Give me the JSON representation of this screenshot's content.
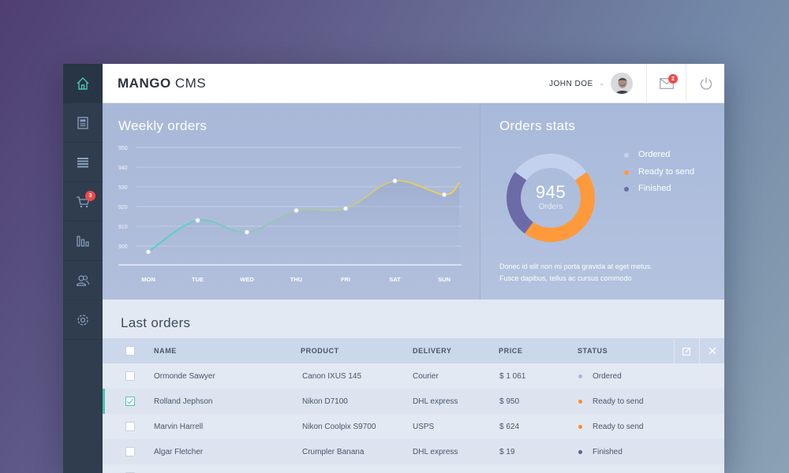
{
  "app": {
    "brand_bold": "MANGO",
    "brand_light": " CMS"
  },
  "header": {
    "user_name": "JOHN DOE",
    "mail_badge": "2",
    "icons": [
      "chevron-down-icon",
      "avatar",
      "mail-icon",
      "power-icon"
    ]
  },
  "sidebar": {
    "items": [
      {
        "name": "home",
        "icon": "home-icon",
        "active": true
      },
      {
        "name": "news",
        "icon": "newspaper-icon"
      },
      {
        "name": "list",
        "icon": "list-icon"
      },
      {
        "name": "cart",
        "icon": "cart-icon",
        "badge": "3"
      },
      {
        "name": "stats",
        "icon": "bar-chart-icon"
      },
      {
        "name": "users",
        "icon": "users-icon"
      },
      {
        "name": "settings",
        "icon": "gear-icon"
      }
    ]
  },
  "weekly": {
    "title": "Weekly orders"
  },
  "chart_data": {
    "type": "line",
    "title": "Weekly orders",
    "categories": [
      "MON",
      "TUE",
      "WED",
      "THU",
      "FRI",
      "SAT",
      "SUN"
    ],
    "values": [
      897,
      913,
      907,
      918,
      919,
      933,
      926
    ],
    "ytick_labels": [
      "950",
      "940",
      "930",
      "920",
      "910",
      "900"
    ],
    "ylim": [
      890,
      950
    ],
    "grid": true,
    "xlabel": "",
    "ylabel": ""
  },
  "stats": {
    "title": "Orders stats",
    "total": "945",
    "total_label": "Orders",
    "legend": [
      {
        "label": "Ordered",
        "color": "#c4d1ee",
        "value": 30
      },
      {
        "label": "Ready to send",
        "color": "#ff9a3c",
        "value": 45
      },
      {
        "label": "Finished",
        "color": "#6d6aa8",
        "value": 25
      }
    ],
    "desc_line1": "Donec id elit non mi porta gravida at eget metus.",
    "desc_line2": "Fusce dapibus, tellus ac cursus commodo"
  },
  "orders": {
    "title": "Last orders",
    "headers": {
      "name": "NAME",
      "product": "PRODUCT",
      "delivery": "DELIVERY",
      "price": "PRICE",
      "status": "STATUS"
    },
    "rows": [
      {
        "name": "Ormonde Sawyer",
        "product": "Canon IXUS 145",
        "delivery": "Courier",
        "price": "$ 1 061",
        "status": "Ordered",
        "status_color": "#a9b8dd",
        "checked": false
      },
      {
        "name": "Rolland Jephson",
        "product": "Nikon D7100",
        "delivery": "DHL express",
        "price": "$ 950",
        "status": "Ready to send",
        "status_color": "#ff8a2a",
        "checked": true
      },
      {
        "name": "Marvin Harrell",
        "product": "Nikon Coolpix S9700",
        "delivery": "USPS",
        "price": "$ 624",
        "status": "Ready to send",
        "status_color": "#ff8a2a",
        "checked": false
      },
      {
        "name": "Algar Fletcher",
        "product": "Crumpler Banana",
        "delivery": "DHL express",
        "price": "$ 19",
        "status": "Finished",
        "status_color": "#5f5d9e",
        "checked": false
      }
    ]
  },
  "colors": {
    "accent": "#4dc2b4",
    "sidebar": "#2f3d4e",
    "badge": "#ef4a4a"
  }
}
